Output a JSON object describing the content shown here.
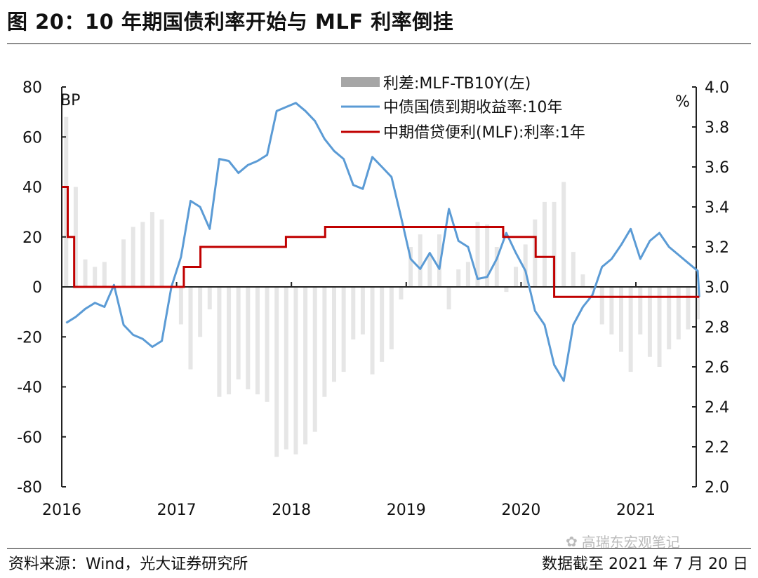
{
  "title": "图 20：10 年期国债利率开始与 MLF 利率倒挂",
  "footer": {
    "source": "资料来源：Wind，光大证券研究所",
    "cutoff": "数据截至 2021 年 7 月 20 日",
    "watermark": "高瑞东宏观笔记"
  },
  "chart_data": {
    "type": "bar+line",
    "left_axis": {
      "unit": "BP",
      "ylim": [
        -80,
        80
      ],
      "ticks": [
        "80",
        "60",
        "40",
        "20",
        "0",
        "-20",
        "-40",
        "-60",
        "-80"
      ]
    },
    "right_axis": {
      "unit": "%",
      "ylim": [
        2.0,
        4.0
      ],
      "ticks": [
        "4.0",
        "3.8",
        "3.6",
        "3.4",
        "3.2",
        "3.0",
        "2.8",
        "2.6",
        "2.4",
        "2.2",
        "2.0"
      ]
    },
    "x_ticks": [
      "2016",
      "2017",
      "2018",
      "2019",
      "2020",
      "2021"
    ],
    "x_range": [
      "2016-01-01",
      "2021-07-20"
    ],
    "legend": {
      "placement": "top-right"
    },
    "colors": {
      "spread": "#a6a6a6",
      "yield": "#5b9bd5",
      "mlf": "#c00000"
    },
    "dates": [
      "2016-01",
      "2016-02",
      "2016-03",
      "2016-04",
      "2016-05",
      "2016-06",
      "2016-07",
      "2016-08",
      "2016-09",
      "2016-10",
      "2016-11",
      "2016-12",
      "2017-01",
      "2017-02",
      "2017-03",
      "2017-04",
      "2017-05",
      "2017-06",
      "2017-07",
      "2017-08",
      "2017-09",
      "2017-10",
      "2017-11",
      "2017-12",
      "2018-01",
      "2018-02",
      "2018-03",
      "2018-04",
      "2018-05",
      "2018-06",
      "2018-07",
      "2018-08",
      "2018-09",
      "2018-10",
      "2018-11",
      "2018-12",
      "2019-01",
      "2019-02",
      "2019-03",
      "2019-04",
      "2019-05",
      "2019-06",
      "2019-07",
      "2019-08",
      "2019-09",
      "2019-10",
      "2019-11",
      "2019-12",
      "2020-01",
      "2020-02",
      "2020-03",
      "2020-04",
      "2020-05",
      "2020-06",
      "2020-07",
      "2020-08",
      "2020-09",
      "2020-10",
      "2020-11",
      "2020-12",
      "2021-01",
      "2021-02",
      "2021-03",
      "2021-04",
      "2021-05",
      "2021-06",
      "2021-07",
      "2021-07-20"
    ],
    "series": [
      {
        "name": "利差:MLF-TB10Y(左)",
        "axis": "left",
        "type": "bar",
        "values": [
          68,
          40,
          11,
          8,
          10,
          -1,
          19,
          24,
          26,
          30,
          27,
          0,
          -15,
          -33,
          -20,
          -9,
          -44,
          -43,
          -37,
          -41,
          -43,
          -46,
          -68,
          -65,
          -67,
          -63,
          -58,
          -44,
          -38,
          -34,
          -21,
          -19,
          -35,
          -30,
          -25,
          -5,
          16,
          21,
          13,
          21,
          -9,
          7,
          10,
          26,
          25,
          16,
          -2,
          8,
          17,
          27,
          34,
          34,
          42,
          14,
          5,
          -1,
          -15,
          -19,
          -26,
          -34,
          -19,
          -28,
          -32,
          -25,
          -21,
          -17,
          -13,
          0
        ]
      },
      {
        "name": "中债国债到期收益率:10年",
        "axis": "right",
        "type": "line",
        "values": [
          2.82,
          2.85,
          2.89,
          2.92,
          2.9,
          3.01,
          2.81,
          2.76,
          2.74,
          2.7,
          2.73,
          3.0,
          3.15,
          3.43,
          3.4,
          3.29,
          3.64,
          3.63,
          3.57,
          3.61,
          3.63,
          3.66,
          3.88,
          3.9,
          3.92,
          3.88,
          3.83,
          3.74,
          3.68,
          3.64,
          3.51,
          3.49,
          3.65,
          3.6,
          3.55,
          3.35,
          3.14,
          3.09,
          3.17,
          3.09,
          3.39,
          3.23,
          3.2,
          3.04,
          3.05,
          3.14,
          3.27,
          3.17,
          3.08,
          2.88,
          2.81,
          2.61,
          2.53,
          2.81,
          2.9,
          2.96,
          3.1,
          3.14,
          3.21,
          3.29,
          3.14,
          3.23,
          3.27,
          3.2,
          3.16,
          3.12,
          3.08,
          2.95
        ]
      },
      {
        "name": "中期借贷便利(MLF):利率:1年",
        "axis": "right",
        "type": "step",
        "steps": [
          [
            "2016-01-01",
            3.5
          ],
          [
            "2016-01-20",
            3.25
          ],
          [
            "2016-02-10",
            3.0
          ],
          [
            "2017-01-24",
            3.1
          ],
          [
            "2017-03-16",
            3.2
          ],
          [
            "2017-12-14",
            3.25
          ],
          [
            "2018-04-17",
            3.3
          ],
          [
            "2019-11-05",
            3.25
          ],
          [
            "2020-02-17",
            3.15
          ],
          [
            "2020-04-15",
            2.95
          ]
        ]
      }
    ]
  }
}
